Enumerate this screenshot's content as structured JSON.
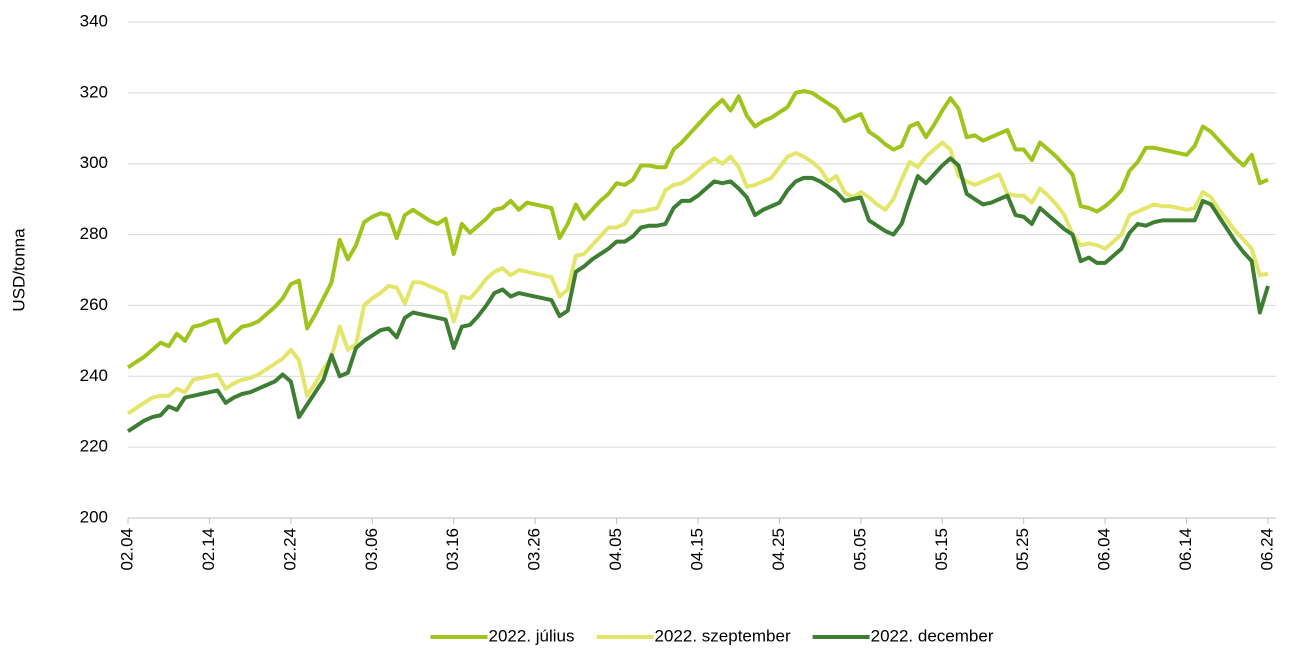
{
  "chart_data": {
    "type": "line",
    "y_label": "USD/tonna",
    "categories": [
      "02.04",
      null,
      null,
      null,
      null,
      null,
      null,
      null,
      null,
      null,
      "02.14",
      null,
      null,
      null,
      null,
      null,
      null,
      null,
      null,
      null,
      "02.24",
      null,
      null,
      null,
      null,
      null,
      null,
      null,
      null,
      null,
      "03.06",
      null,
      null,
      null,
      null,
      null,
      null,
      null,
      null,
      null,
      "03.16",
      null,
      null,
      null,
      null,
      null,
      null,
      null,
      null,
      null,
      "03.26",
      null,
      null,
      null,
      null,
      null,
      null,
      null,
      null,
      null,
      "04.05",
      null,
      null,
      null,
      null,
      null,
      null,
      null,
      null,
      null,
      "04.15",
      null,
      null,
      null,
      null,
      null,
      null,
      null,
      null,
      null,
      "04.25",
      null,
      null,
      null,
      null,
      null,
      null,
      null,
      null,
      null,
      "05.05",
      null,
      null,
      null,
      null,
      null,
      null,
      null,
      null,
      null,
      "05.15",
      null,
      null,
      null,
      null,
      null,
      null,
      null,
      null,
      null,
      "05.25",
      null,
      null,
      null,
      null,
      null,
      null,
      null,
      null,
      null,
      "06.04",
      null,
      null,
      null,
      null,
      null,
      null,
      null,
      null,
      null,
      "06.14",
      null,
      null,
      null,
      null,
      null,
      null,
      null,
      null,
      null,
      "06.24"
    ],
    "series": [
      {
        "name": "2022. július",
        "color": "#9fc41c",
        "values": [
          242.5,
          244,
          245.5,
          247.5,
          249.5,
          248.5,
          252,
          250,
          254,
          254.5,
          255.5,
          256,
          249.5,
          252,
          254,
          254.5,
          255.5,
          257.5,
          259.5,
          262,
          266,
          267,
          253.5,
          257.5,
          262,
          266.5,
          278.5,
          273,
          277,
          283.5,
          285,
          286,
          285.5,
          279,
          285.5,
          287,
          285.5,
          284,
          283,
          284.5,
          274.5,
          283,
          280.5,
          282.5,
          284.5,
          287,
          287.5,
          289.5,
          287,
          289,
          288.5,
          288,
          287.5,
          279,
          283,
          288.5,
          284.5,
          287,
          289.5,
          291.5,
          294.5,
          294,
          295.5,
          299.5,
          299.5,
          299,
          299,
          304,
          306,
          308.5,
          311,
          313.5,
          316,
          318,
          315,
          319,
          313.5,
          310.5,
          312,
          313,
          314.5,
          316,
          320,
          320.5,
          320,
          318.5,
          317,
          315.5,
          312,
          313,
          314,
          309,
          307.5,
          305.5,
          304,
          305,
          310.5,
          311.5,
          307.5,
          311,
          315,
          318.5,
          315.5,
          307.5,
          308,
          306.5,
          307.5,
          308.5,
          309.5,
          304,
          304,
          301,
          306,
          304,
          302,
          299.5,
          297,
          288,
          287.5,
          286.5,
          288,
          290,
          292.5,
          298,
          300.5,
          304.5,
          304.5,
          304,
          303.5,
          303,
          302.5,
          305,
          310.5,
          309,
          306.5,
          304,
          301.5,
          299.5,
          302.5,
          294.5,
          295.5
        ]
      },
      {
        "name": "2022. szeptember",
        "color": "#e3e66a",
        "values": [
          229.5,
          231,
          232.5,
          234,
          234.5,
          234.5,
          236.5,
          235.5,
          239,
          239.5,
          240,
          240.5,
          236.5,
          238,
          239,
          239.5,
          240.5,
          242,
          243.5,
          245,
          247.5,
          244.5,
          234.5,
          238,
          242,
          245.5,
          254,
          247.5,
          249,
          260,
          262,
          263.5,
          265.5,
          265,
          260.5,
          266.5,
          266.5,
          265.5,
          264.5,
          263.5,
          255.5,
          262.5,
          262,
          264.5,
          267.5,
          269.5,
          270.5,
          268.5,
          270,
          269.5,
          269,
          268.5,
          268,
          262.5,
          264.5,
          274,
          274.5,
          277,
          279.5,
          282,
          282,
          283,
          286.5,
          286.5,
          287,
          287.5,
          292.5,
          294,
          294.5,
          296,
          298,
          300,
          301.5,
          300,
          302,
          299,
          293.5,
          294,
          295,
          296,
          299,
          302,
          303,
          302,
          300.5,
          298.5,
          295,
          296.5,
          292,
          290.5,
          292,
          290.5,
          288.5,
          287,
          290,
          295.5,
          300.5,
          299,
          302,
          304,
          306,
          304,
          296.5,
          295,
          294,
          295,
          296,
          297,
          291.5,
          291,
          291,
          289,
          293,
          291,
          288.5,
          285.5,
          280,
          277,
          277.5,
          277,
          276,
          278,
          280,
          285.5,
          286.5,
          287.5,
          288.5,
          288,
          288,
          287.5,
          287,
          287.5,
          292,
          290.5,
          287,
          284,
          281,
          278.5,
          276,
          268.5,
          269
        ]
      },
      {
        "name": "2022. december",
        "color": "#3e7e33",
        "values": [
          224.5,
          226,
          227.5,
          228.5,
          229,
          231.5,
          230.5,
          234,
          234.5,
          235,
          235.5,
          236,
          232.5,
          234,
          235,
          235.5,
          236.5,
          237.5,
          238.5,
          240.5,
          238.5,
          228.5,
          232,
          235.5,
          239,
          246,
          240,
          241,
          248,
          250,
          251.5,
          253,
          253.5,
          251,
          256.5,
          258,
          257.5,
          257,
          256.5,
          256,
          248,
          254,
          254.5,
          257,
          260,
          263.5,
          264.5,
          262.5,
          263.5,
          263,
          262.5,
          262,
          261.5,
          257,
          258.5,
          269.5,
          271,
          273,
          274.5,
          276,
          278,
          278,
          279.5,
          282,
          282.5,
          282.5,
          283,
          287.5,
          289.5,
          289.5,
          291,
          293,
          295,
          294.5,
          295,
          293,
          290.5,
          285.5,
          287,
          288,
          289,
          292.5,
          295,
          296,
          296,
          295,
          293.5,
          292,
          289.5,
          290,
          290.5,
          284,
          282.5,
          281,
          280,
          283,
          290,
          296.5,
          294.5,
          297,
          299.5,
          301.5,
          299.5,
          291.5,
          290,
          288.5,
          289,
          290,
          291,
          285.5,
          285,
          283,
          287.5,
          285.5,
          283.5,
          281.5,
          280,
          272.5,
          273.5,
          272,
          272,
          274,
          276,
          280.5,
          283,
          282.5,
          283.5,
          284,
          284,
          284,
          284,
          284,
          289.5,
          288.5,
          285,
          281.5,
          278,
          275,
          272.5,
          258,
          265.5
        ]
      }
    ],
    "ylim": [
      200,
      340
    ],
    "yticks": [
      200,
      220,
      240,
      260,
      280,
      300,
      320,
      340
    ],
    "grid": true,
    "legend": "bottom"
  }
}
